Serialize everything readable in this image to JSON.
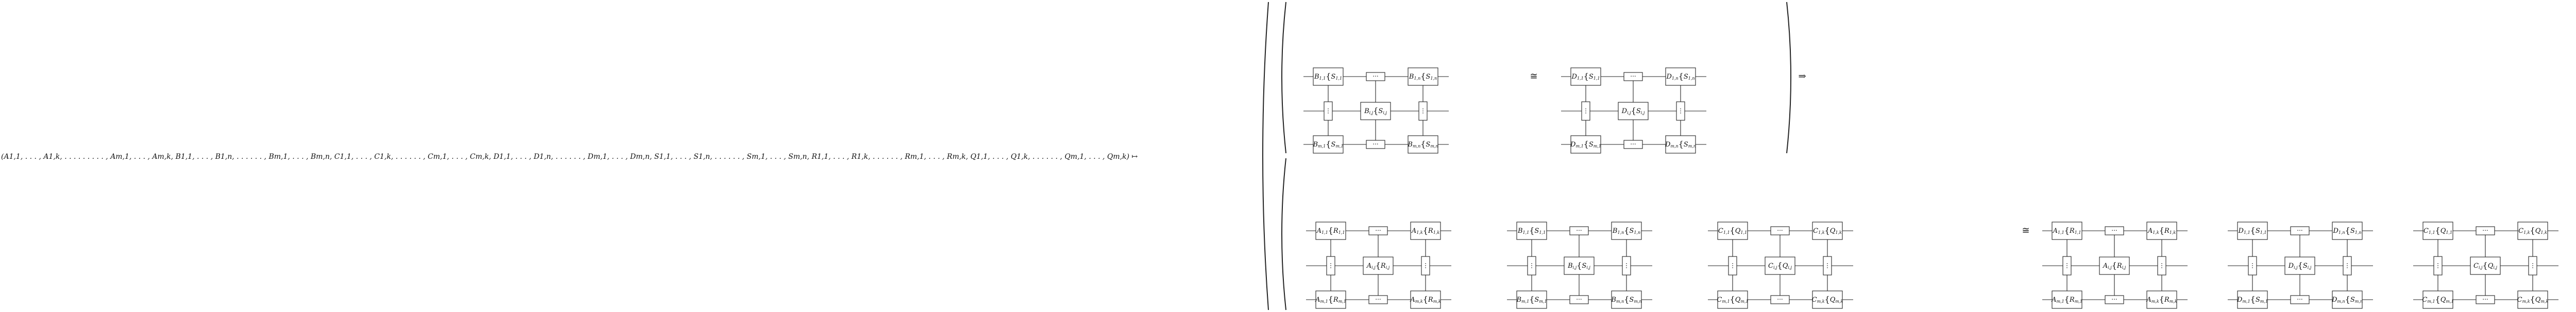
{
  "left_tuple": "(A1,1, . . . , A1,k, . . . . . . . . . , Am,1, . . . , Am,k, B1,1, . . . , B1,n, . . . . . . , Bm,1, . . . , Bm,n, C1,1, . . . , C1,k, . . . . . . , Cm,1, . . . , Cm,k, D1,1, . . . , D1,n, . . . . . . , Dm,1, . . . , Dm,n, S1,1, . . . , S1,n, . . . . . . , Sm,1, . . . , Sm,n, R1,1, . . . , R1,k, . . . . . . , Rm,1, . . . , Rm,k, Q1,1, . . . , Q1,k, . . . . . . , Qm,1, . . . , Qm,k) ↦",
  "symbols": {
    "iso": "≅",
    "implies": "⇒",
    "hdots": "···",
    "vdots": "⋮",
    "brace": "{"
  },
  "top_left": {
    "corner_tl": {
      "a": "B",
      "ai": "1,1",
      "b": "S",
      "bi": "1,1"
    },
    "corner_tr": {
      "a": "B",
      "ai": "1,n",
      "b": "S",
      "bi": "1,n"
    },
    "center": {
      "a": "B",
      "ai": "i,j",
      "b": "S",
      "bi": "i,j"
    },
    "corner_bl": {
      "a": "B",
      "ai": "m,1",
      "b": "S",
      "bi": "m,1"
    },
    "corner_br": {
      "a": "B",
      "ai": "m,n",
      "b": "S",
      "bi": "m,n"
    }
  },
  "top_right": {
    "corner_tl": {
      "a": "D",
      "ai": "1,1",
      "b": "S",
      "bi": "1,1"
    },
    "corner_tr": {
      "a": "D",
      "ai": "1,n",
      "b": "S",
      "bi": "1,n"
    },
    "center": {
      "a": "D",
      "ai": "i,j",
      "b": "S",
      "bi": "i,j"
    },
    "corner_bl": {
      "a": "D",
      "ai": "m,1",
      "b": "S",
      "bi": "m,1"
    },
    "corner_br": {
      "a": "D",
      "ai": "m,n",
      "b": "S",
      "bi": "m,n"
    }
  },
  "bottom_left": [
    {
      "tl": {
        "a": "A",
        "ai": "1,1",
        "b": "R",
        "bi": "1,1"
      },
      "tr": {
        "a": "A",
        "ai": "1,k",
        "b": "R",
        "bi": "1,k"
      },
      "c": {
        "a": "A",
        "ai": "i,j",
        "b": "R",
        "bi": "i,j"
      },
      "bl": {
        "a": "A",
        "ai": "m,1",
        "b": "R",
        "bi": "m,1"
      },
      "br": {
        "a": "A",
        "ai": "m,k",
        "b": "R",
        "bi": "m,k"
      }
    },
    {
      "tl": {
        "a": "B",
        "ai": "1,1",
        "b": "S",
        "bi": "1,1"
      },
      "tr": {
        "a": "B",
        "ai": "1,n",
        "b": "S",
        "bi": "1,n"
      },
      "c": {
        "a": "B",
        "ai": "i,j",
        "b": "S",
        "bi": "i,j"
      },
      "bl": {
        "a": "B",
        "ai": "m,1",
        "b": "S",
        "bi": "m,1"
      },
      "br": {
        "a": "B",
        "ai": "m,n",
        "b": "S",
        "bi": "m,n"
      }
    },
    {
      "tl": {
        "a": "C",
        "ai": "1,1",
        "b": "Q",
        "bi": "1,1"
      },
      "tr": {
        "a": "C",
        "ai": "1,k",
        "b": "Q",
        "bi": "1,k"
      },
      "c": {
        "a": "C",
        "ai": "i,j",
        "b": "Q",
        "bi": "i,j"
      },
      "bl": {
        "a": "C",
        "ai": "m,1",
        "b": "Q",
        "bi": "m,1"
      },
      "br": {
        "a": "C",
        "ai": "m,k",
        "b": "Q",
        "bi": "m,k"
      }
    }
  ],
  "bottom_right": [
    {
      "tl": {
        "a": "A",
        "ai": "1,1",
        "b": "R",
        "bi": "1,1"
      },
      "tr": {
        "a": "A",
        "ai": "1,k",
        "b": "R",
        "bi": "1,k"
      },
      "c": {
        "a": "A",
        "ai": "i,j",
        "b": "R",
        "bi": "i,j"
      },
      "bl": {
        "a": "A",
        "ai": "m,1",
        "b": "R",
        "bi": "m,1"
      },
      "br": {
        "a": "A",
        "ai": "m,k",
        "b": "R",
        "bi": "m,k"
      }
    },
    {
      "tl": {
        "a": "D",
        "ai": "1,1",
        "b": "S",
        "bi": "1,1"
      },
      "tr": {
        "a": "D",
        "ai": "1,n",
        "b": "S",
        "bi": "1,n"
      },
      "c": {
        "a": "D",
        "ai": "i,j",
        "b": "S",
        "bi": "i,j"
      },
      "bl": {
        "a": "D",
        "ai": "m,1",
        "b": "S",
        "bi": "m,1"
      },
      "br": {
        "a": "D",
        "ai": "m,n",
        "b": "S",
        "bi": "m,n"
      }
    },
    {
      "tl": {
        "a": "C",
        "ai": "1,1",
        "b": "Q",
        "bi": "1,1"
      },
      "tr": {
        "a": "C",
        "ai": "1,k",
        "b": "Q",
        "bi": "1,k"
      },
      "c": {
        "a": "C",
        "ai": "i,j",
        "b": "Q",
        "bi": "i,j"
      },
      "bl": {
        "a": "C",
        "ai": "m,1",
        "b": "Q",
        "bi": "m,1"
      },
      "br": {
        "a": "C",
        "ai": "m,k",
        "b": "Q",
        "bi": "m,k"
      }
    }
  ]
}
